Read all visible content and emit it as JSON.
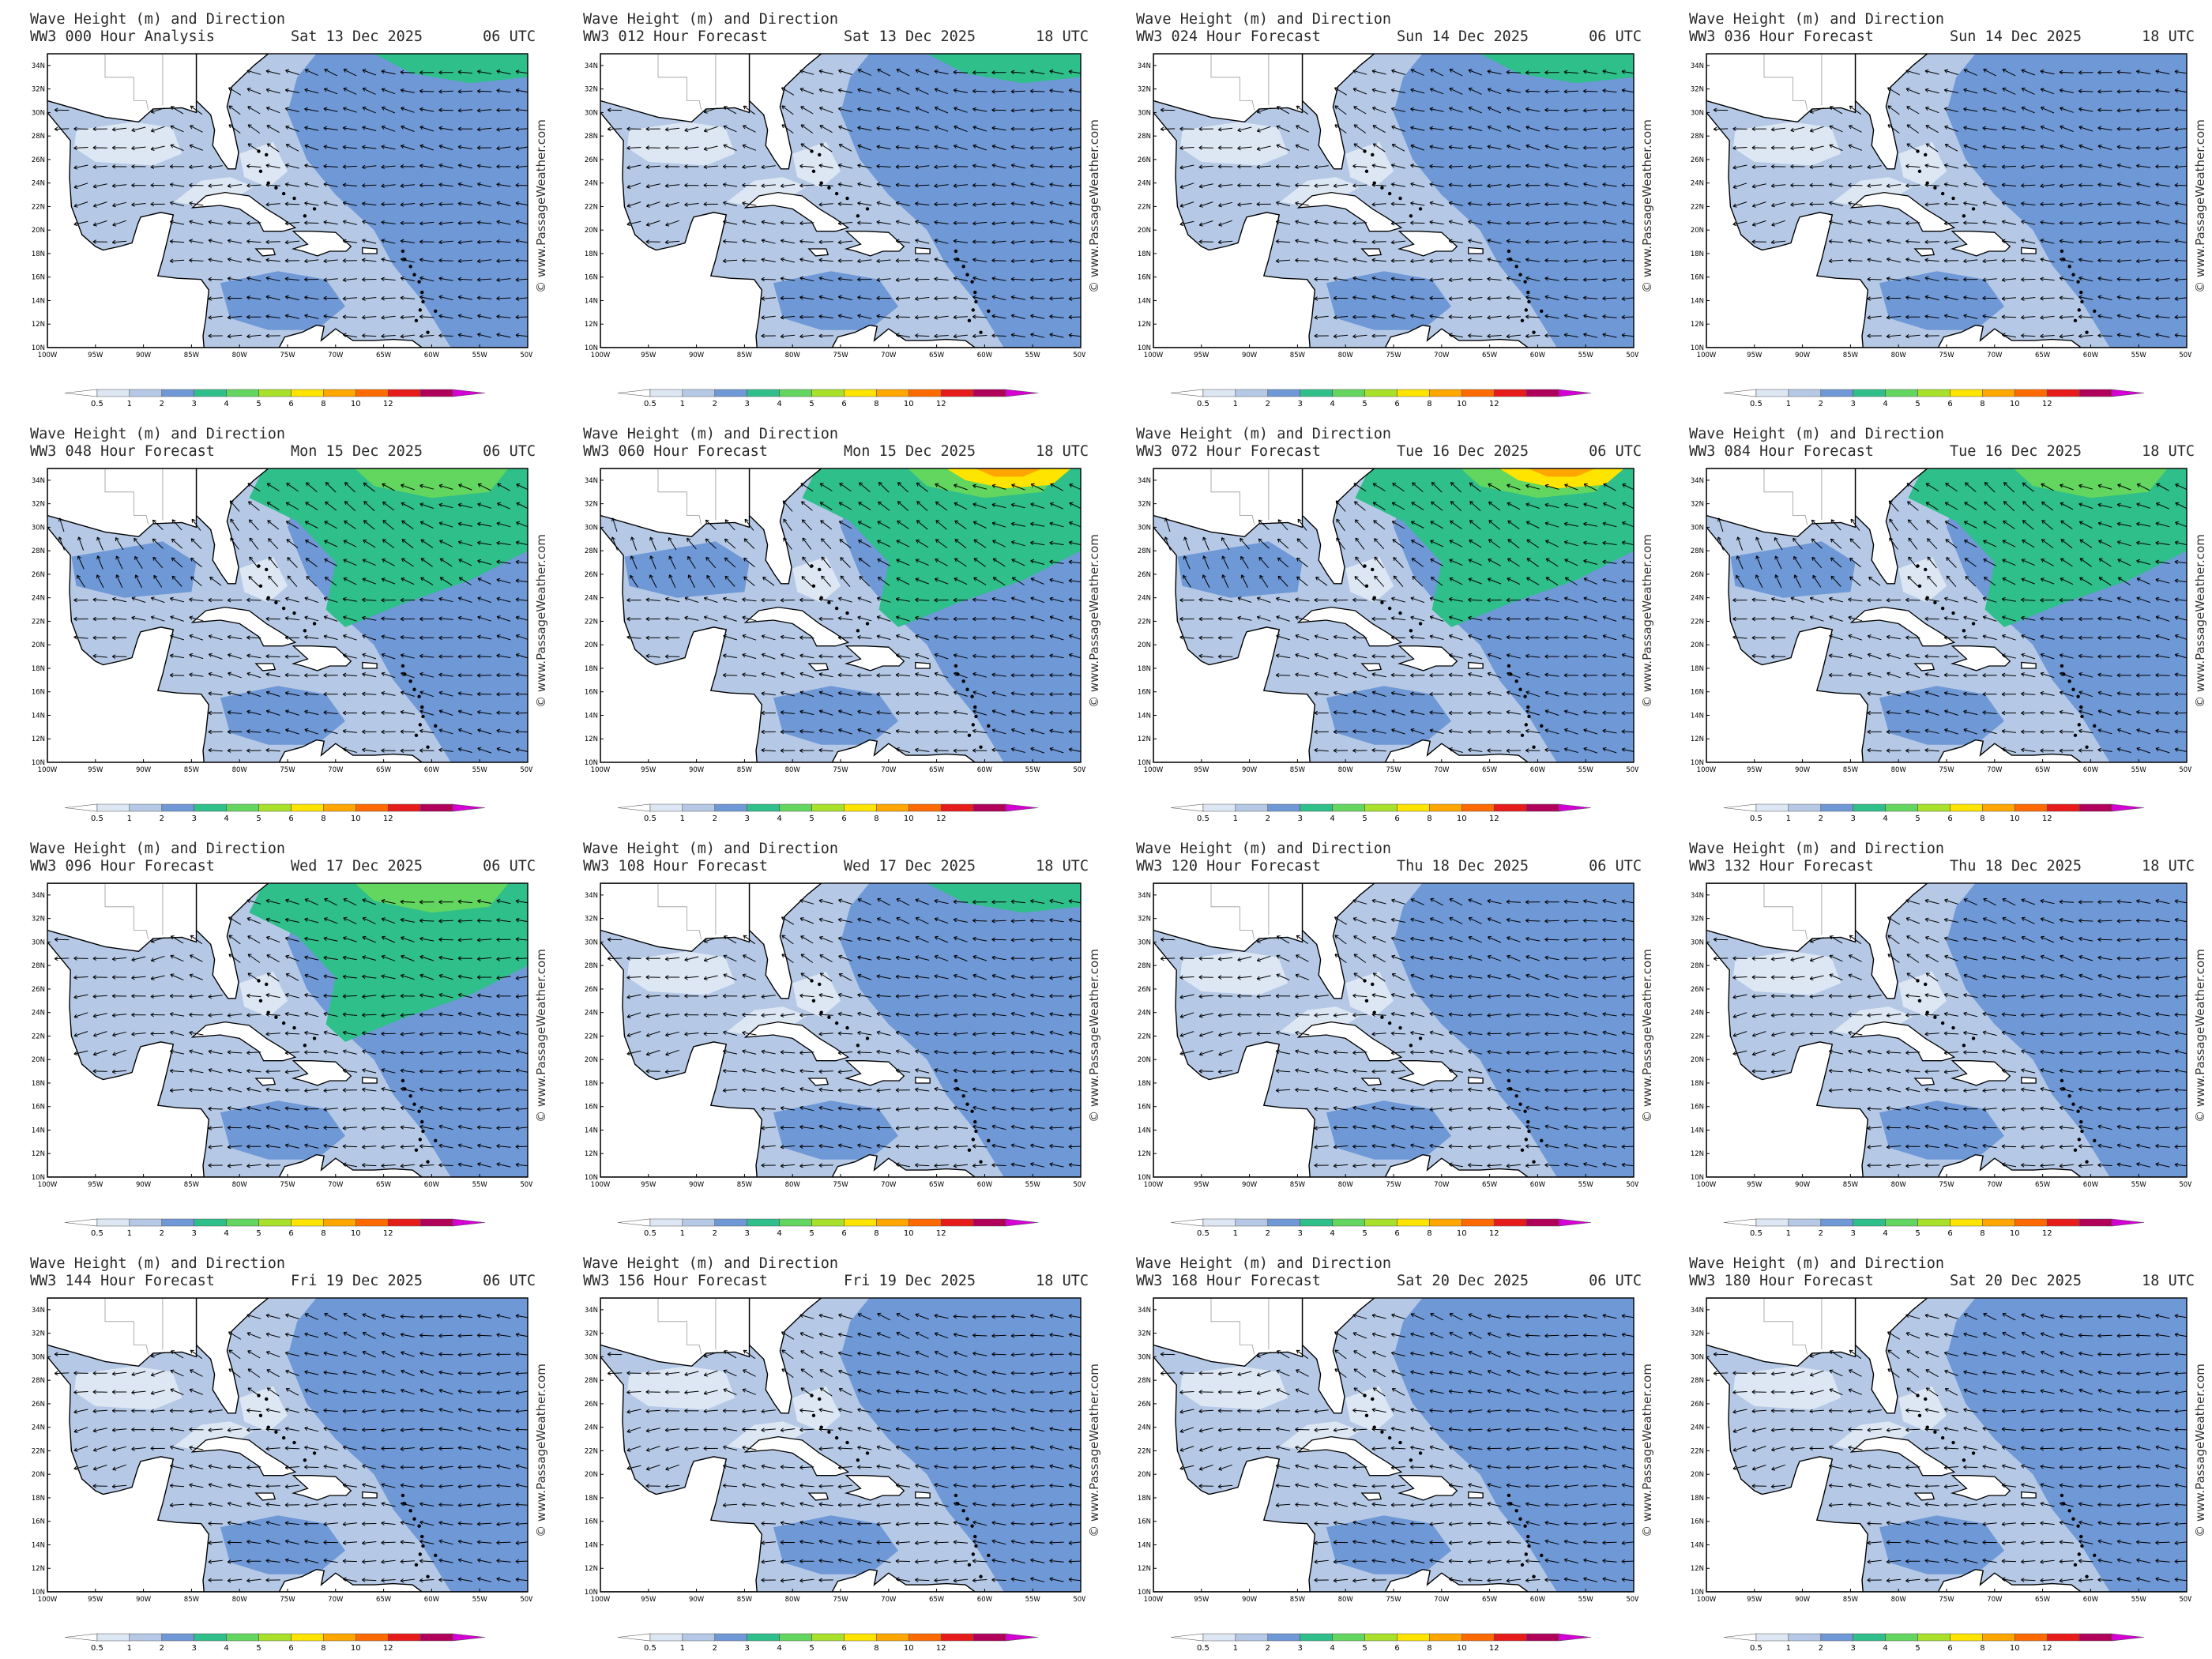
{
  "product_title": "Wave Height (m) and Direction",
  "watermark": "© www.PassageWeather.com",
  "colors": {
    "sea_0": "#ffffff",
    "sea_05": "#dde7f4",
    "sea_1": "#b5c9e6",
    "sea_2": "#6f98d6",
    "sea_3": "#2fbf8a",
    "sea_4": "#62d65e",
    "sea_5": "#ffe400",
    "sea_6": "#ffa600",
    "land": "#ffffff",
    "arrow": "#000000",
    "coast": "#000000"
  },
  "map_axes": {
    "lat_labels": [
      "34N",
      "32N",
      "30N",
      "28N",
      "26N",
      "24N",
      "22N",
      "20N",
      "18N",
      "16N",
      "14N",
      "12N",
      "10N"
    ],
    "lon_labels": [
      "100W",
      "95W",
      "90W",
      "85W",
      "80W",
      "75W",
      "70W",
      "65W",
      "60W",
      "55W",
      "50W"
    ]
  },
  "color_scale": {
    "labels": [
      "0.5",
      "1",
      "2",
      "3",
      "4",
      "5",
      "6",
      "8",
      "10",
      "12"
    ],
    "colors": [
      "#ffffff",
      "#dde7f4",
      "#b5c9e6",
      "#6f98d6",
      "#2fbf8a",
      "#62d65e",
      "#a8e02a",
      "#ffe400",
      "#ffa600",
      "#ff6a00",
      "#e81b1b",
      "#b0005a",
      "#d400d4"
    ]
  },
  "panels": [
    {
      "run_label": "WW3 000 Hour Analysis",
      "date": "Sat 13 Dec 2025",
      "utc": "06 UTC",
      "flow": "trade",
      "swell_ne": 1,
      "gulf_calm": 1
    },
    {
      "run_label": "WW3 012 Hour Forecast",
      "date": "Sat 13 Dec 2025",
      "utc": "18 UTC",
      "flow": "trade",
      "swell_ne": 1,
      "gulf_calm": 1
    },
    {
      "run_label": "WW3 024 Hour Forecast",
      "date": "Sun 14 Dec 2025",
      "utc": "06 UTC",
      "flow": "trade",
      "swell_ne": 1,
      "gulf_calm": 1
    },
    {
      "run_label": "WW3 036 Hour Forecast",
      "date": "Sun 14 Dec 2025",
      "utc": "18 UTC",
      "flow": "trade",
      "swell_ne": 0,
      "gulf_calm": 1
    },
    {
      "run_label": "WW3 048 Hour Forecast",
      "date": "Mon 15 Dec 2025",
      "utc": "06 UTC",
      "flow": "front",
      "swell_ne": 2,
      "gulf_calm": 0
    },
    {
      "run_label": "WW3 060 Hour Forecast",
      "date": "Mon 15 Dec 2025",
      "utc": "18 UTC",
      "flow": "front",
      "swell_ne": 3,
      "gulf_calm": 0
    },
    {
      "run_label": "WW3 072 Hour Forecast",
      "date": "Tue 16 Dec 2025",
      "utc": "06 UTC",
      "flow": "front",
      "swell_ne": 3,
      "gulf_calm": 0
    },
    {
      "run_label": "WW3 084 Hour Forecast",
      "date": "Tue 16 Dec 2025",
      "utc": "18 UTC",
      "flow": "front",
      "swell_ne": 2,
      "gulf_calm": 0
    },
    {
      "run_label": "WW3 096 Hour Forecast",
      "date": "Wed 17 Dec 2025",
      "utc": "06 UTC",
      "flow": "trade",
      "swell_ne": 2,
      "gulf_calm": 0
    },
    {
      "run_label": "WW3 108 Hour Forecast",
      "date": "Wed 17 Dec 2025",
      "utc": "18 UTC",
      "flow": "trade",
      "swell_ne": 1,
      "gulf_calm": 1
    },
    {
      "run_label": "WW3 120 Hour Forecast",
      "date": "Thu 18 Dec 2025",
      "utc": "06 UTC",
      "flow": "trade",
      "swell_ne": 0,
      "gulf_calm": 1
    },
    {
      "run_label": "WW3 132 Hour Forecast",
      "date": "Thu 18 Dec 2025",
      "utc": "18 UTC",
      "flow": "trade",
      "swell_ne": 0,
      "gulf_calm": 1
    },
    {
      "run_label": "WW3 144 Hour Forecast",
      "date": "Fri 19 Dec 2025",
      "utc": "06 UTC",
      "flow": "trade",
      "swell_ne": 0,
      "gulf_calm": 1
    },
    {
      "run_label": "WW3 156 Hour Forecast",
      "date": "Fri 19 Dec 2025",
      "utc": "18 UTC",
      "flow": "trade",
      "swell_ne": 0,
      "gulf_calm": 1
    },
    {
      "run_label": "WW3 168 Hour Forecast",
      "date": "Sat 20 Dec 2025",
      "utc": "06 UTC",
      "flow": "trade",
      "swell_ne": 0,
      "gulf_calm": 1
    },
    {
      "run_label": "WW3 180 Hour Forecast",
      "date": "Sat 20 Dec 2025",
      "utc": "18 UTC",
      "flow": "trade",
      "swell_ne": 0,
      "gulf_calm": 1
    }
  ]
}
